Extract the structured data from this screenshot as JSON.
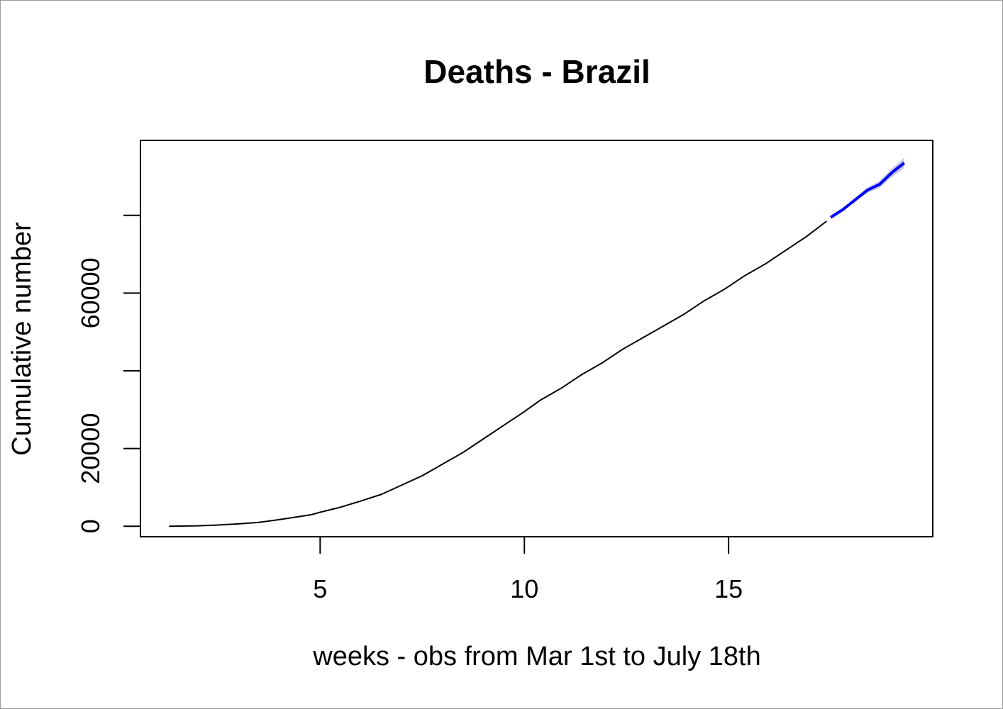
{
  "chart_data": {
    "type": "line",
    "title": "Deaths - Brazil",
    "xlabel": "weeks - obs from Mar 1st to July 18th",
    "ylabel": "Cumulative number",
    "xlim": [
      0.6,
      20.0
    ],
    "ylim": [
      -2700,
      99300
    ],
    "x_ticks": [
      5,
      10,
      15
    ],
    "y_ticks": [
      0,
      20000,
      40000,
      60000,
      80000
    ],
    "y_tick_labels": [
      "0",
      "20000",
      "",
      "60000",
      ""
    ],
    "grid": false,
    "legend": "none",
    "series": [
      {
        "role": "observed",
        "color": "#000000",
        "x": [
          1.3,
          2.0,
          2.5,
          3.0,
          3.5,
          4.0,
          4.5,
          4.8,
          5.0,
          5.5,
          6.0,
          6.5,
          7.0,
          7.5,
          8.0,
          8.5,
          9.0,
          9.5,
          10.0,
          10.4,
          10.9,
          11.4,
          11.9,
          12.4,
          12.9,
          13.4,
          13.9,
          14.4,
          14.9,
          15.4,
          15.9,
          16.4,
          16.9,
          17.4
        ],
        "y": [
          0,
          100,
          300,
          600,
          1000,
          1700,
          2500,
          3000,
          3600,
          4900,
          6500,
          8200,
          10600,
          13000,
          16000,
          19000,
          22500,
          26000,
          29500,
          32500,
          35500,
          39000,
          42000,
          45500,
          48500,
          51500,
          54500,
          58000,
          61000,
          64500,
          67500,
          71000,
          74500,
          78500
        ]
      },
      {
        "role": "forecast",
        "color": "#0000ff",
        "band_color": "#c8c8e6",
        "x": [
          17.5,
          17.8,
          18.1,
          18.4,
          18.7,
          19.0,
          19.3
        ],
        "y": [
          79500,
          81500,
          84000,
          86500,
          88000,
          91000,
          93500
        ],
        "band_halfwidth": [
          100,
          300,
          500,
          700,
          900,
          1100,
          1300
        ]
      }
    ]
  }
}
